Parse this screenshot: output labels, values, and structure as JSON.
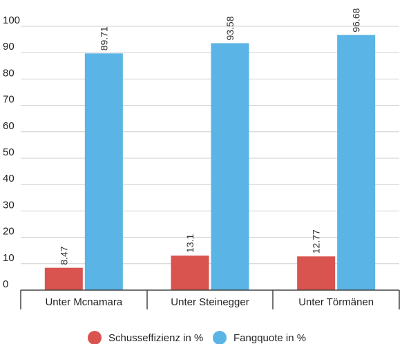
{
  "chart_data": {
    "type": "bar",
    "categories": [
      "Unter Mcnamara",
      "Unter Steinegger",
      "Unter Törmänen"
    ],
    "series": [
      {
        "name": "Schusseffizienz in %",
        "values": [
          8.47,
          13.1,
          12.77
        ],
        "labels": [
          "8.47",
          "13.1",
          "12.77"
        ],
        "color": "#d9534f"
      },
      {
        "name": "Fangquote in %",
        "values": [
          89.71,
          93.58,
          96.68
        ],
        "labels": [
          "89.71",
          "93.58",
          "96.68"
        ],
        "color": "#5ab4e5"
      }
    ],
    "yticks": [
      "0",
      "10",
      "20",
      "30",
      "40",
      "50",
      "60",
      "70",
      "80",
      "90",
      "100"
    ],
    "ylim": [
      0,
      100
    ],
    "grid": true,
    "legend": "bottom-center"
  }
}
